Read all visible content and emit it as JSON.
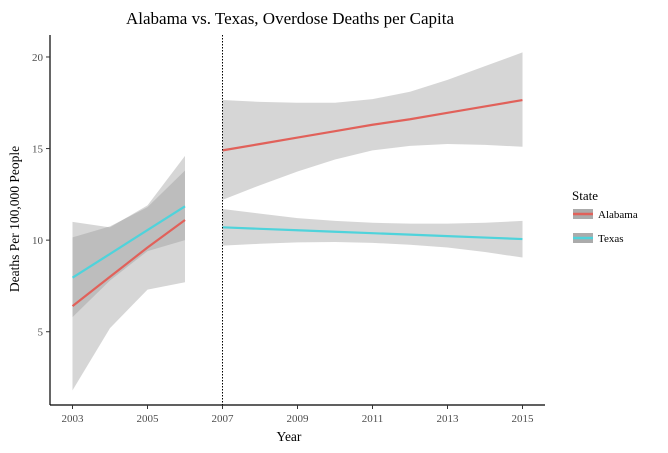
{
  "chart_data": {
    "type": "line",
    "title": "Alabama vs. Texas, Overdose Deaths per Capita",
    "xlabel": "Year",
    "ylabel": "Deaths Per 100,000 People",
    "xlim": [
      2002.4,
      2015.6
    ],
    "ylim": [
      1.0,
      21.2
    ],
    "x_ticks": [
      2003,
      2005,
      2007,
      2009,
      2011,
      2013,
      2015
    ],
    "y_ticks": [
      5,
      10,
      15,
      20
    ],
    "grid": false,
    "vline": {
      "x": 2007,
      "style": "dotted",
      "color": "#000000"
    },
    "ribbon_color": "#999999",
    "legend": {
      "title": "State",
      "position": "right"
    },
    "series": [
      {
        "name": "Alabama",
        "color": "#e1615a",
        "segments": [
          {
            "x": [
              2003,
              2004,
              2005,
              2006
            ],
            "y": [
              6.4,
              8.0,
              9.6,
              11.1
            ],
            "lower": [
              1.8,
              5.2,
              7.3,
              7.7
            ],
            "upper": [
              11.0,
              10.7,
              11.9,
              14.6
            ]
          },
          {
            "x": [
              2007,
              2008,
              2009,
              2010,
              2011,
              2012,
              2013,
              2014,
              2015
            ],
            "y": [
              14.9,
              15.25,
              15.6,
              15.95,
              16.3,
              16.6,
              16.95,
              17.3,
              17.65
            ],
            "lower": [
              12.2,
              13.0,
              13.75,
              14.4,
              14.9,
              15.15,
              15.25,
              15.2,
              15.1
            ],
            "upper": [
              17.65,
              17.55,
              17.5,
              17.5,
              17.7,
              18.1,
              18.75,
              19.5,
              20.25
            ]
          }
        ]
      },
      {
        "name": "Texas",
        "color": "#4fd3db",
        "segments": [
          {
            "x": [
              2003,
              2004,
              2005,
              2006
            ],
            "y": [
              7.95,
              9.25,
              10.55,
              11.85
            ],
            "lower": [
              5.8,
              7.8,
              9.4,
              10.0
            ],
            "upper": [
              10.15,
              10.75,
              11.8,
              13.8
            ]
          },
          {
            "x": [
              2007,
              2008,
              2009,
              2010,
              2011,
              2012,
              2013,
              2014,
              2015
            ],
            "y": [
              10.7,
              10.62,
              10.54,
              10.46,
              10.38,
              10.3,
              10.22,
              10.14,
              10.06
            ],
            "lower": [
              9.7,
              9.8,
              9.88,
              9.9,
              9.85,
              9.75,
              9.6,
              9.35,
              9.05
            ],
            "upper": [
              11.7,
              11.45,
              11.2,
              11.05,
              10.95,
              10.9,
              10.9,
              10.95,
              11.05
            ]
          }
        ]
      }
    ]
  }
}
